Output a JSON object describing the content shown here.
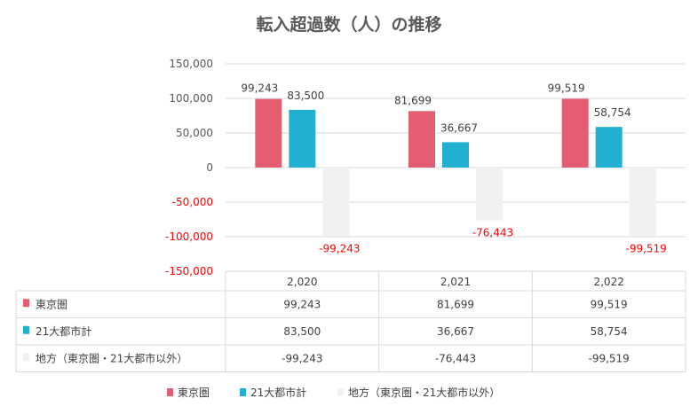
{
  "chart_data": {
    "type": "bar",
    "title": "転入超過数（人）の推移",
    "categories": [
      "2,020",
      "2,021",
      "2,022"
    ],
    "series": [
      {
        "name": "東京圏",
        "values": [
          99243,
          81699,
          99519
        ],
        "labels": [
          "99,243",
          "81,699",
          "99,519"
        ],
        "color": "#e45d71"
      },
      {
        "name": "21大都市計",
        "values": [
          83500,
          36667,
          58754
        ],
        "labels": [
          "83,500",
          "36,667",
          "58,754"
        ],
        "color": "#22b0d0"
      },
      {
        "name": "地方（東京圏・21大都市以外）",
        "values": [
          -99243,
          -76443,
          -99519
        ],
        "labels": [
          "-99,243",
          "-76,443",
          "-99,519"
        ],
        "color": "#f1f1f1"
      }
    ],
    "ylim": [
      -150000,
      150000
    ],
    "yticks": [
      {
        "value": 150000,
        "label": "150,000"
      },
      {
        "value": 100000,
        "label": "100,000"
      },
      {
        "value": 50000,
        "label": "50,000"
      },
      {
        "value": 0,
        "label": "0"
      },
      {
        "value": -50000,
        "label": "-50,000"
      },
      {
        "value": -100000,
        "label": "-100,000"
      },
      {
        "value": -150000,
        "label": "-150,000"
      }
    ],
    "grid": true,
    "data_table": true,
    "legend": "bottom",
    "negative_label_color": "#ff0000"
  }
}
